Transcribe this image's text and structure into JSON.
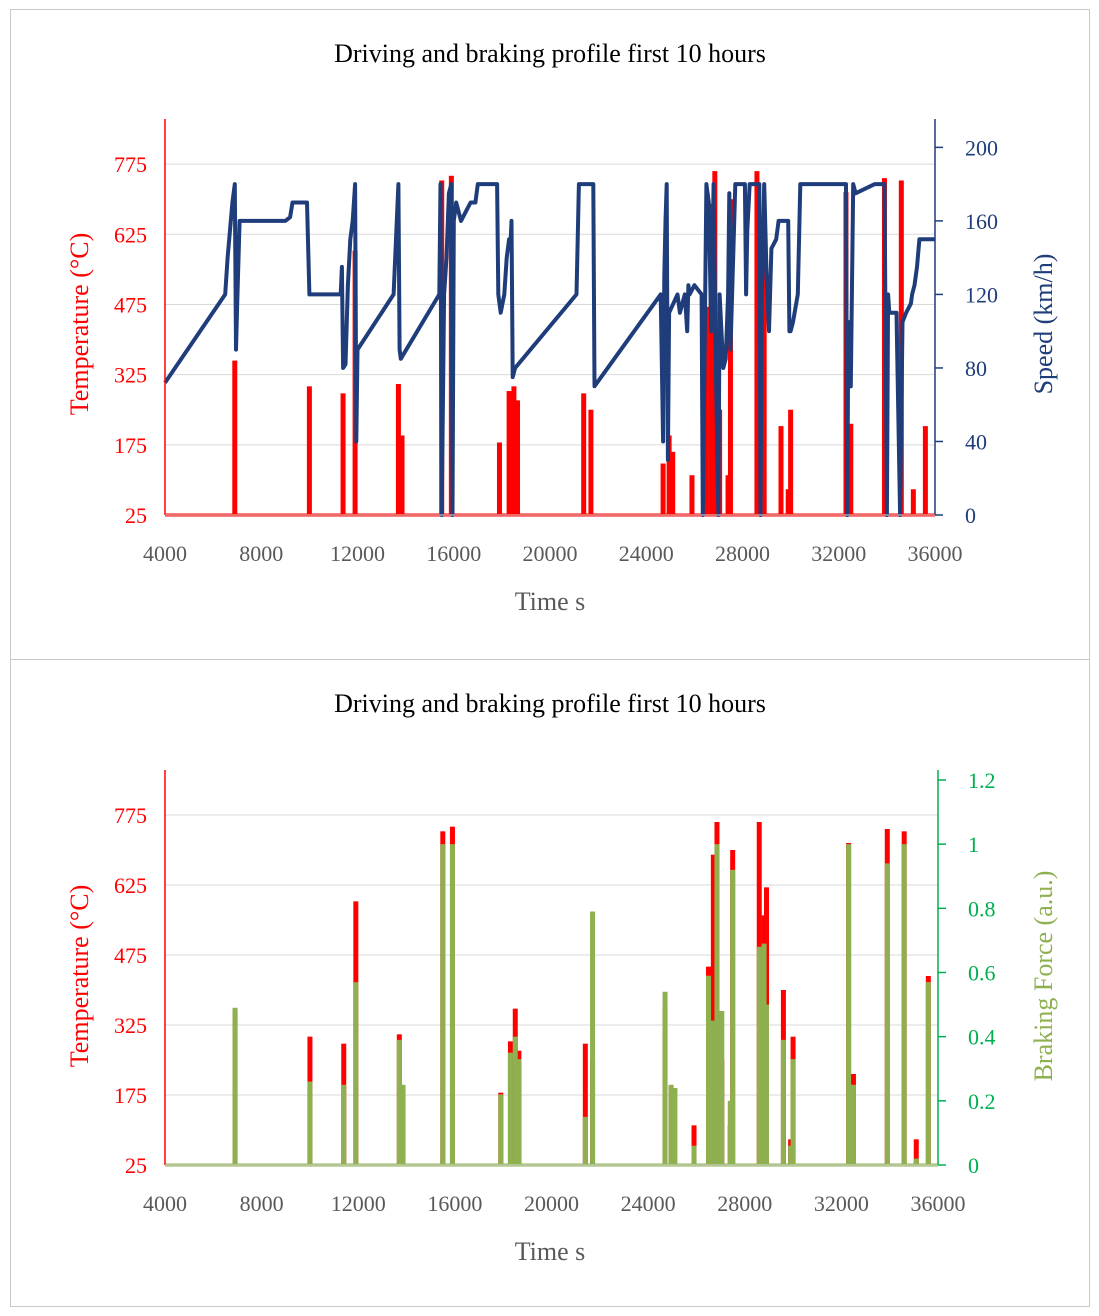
{
  "colors": {
    "temperature": "#ff0000",
    "speed": "#1f3d7a",
    "braking": "#8fb050",
    "braking_axis": "#00b050",
    "grid": "#d9d9d9",
    "axis_text": "#595959"
  },
  "chart_data": [
    {
      "type": "line",
      "title": "Driving and braking profile first 10 hours",
      "xlabel": "Time s",
      "ylabel_left": "Temperature (°C)",
      "ylabel_right": "Speed (km/h)",
      "xlim": [
        4000,
        36000
      ],
      "xticks": [
        "4000",
        "8000",
        "12000",
        "16000",
        "20000",
        "24000",
        "28000",
        "32000",
        "36000"
      ],
      "ylim_left": [
        25,
        850
      ],
      "yticks_left": [
        "25",
        "175",
        "325",
        "475",
        "625",
        "775"
      ],
      "ylim_right": [
        0,
        210
      ],
      "yticks_right": [
        "0",
        "40",
        "80",
        "120",
        "160",
        "200"
      ],
      "series": [
        {
          "name": "Temperature",
          "axis": "left",
          "spikes": [
            [
              6900,
              355
            ],
            [
              10000,
              300
            ],
            [
              11400,
              285
            ],
            [
              11900,
              590
            ],
            [
              13700,
              305
            ],
            [
              13850,
              195
            ],
            [
              15500,
              740
            ],
            [
              15900,
              750
            ],
            [
              17900,
              180
            ],
            [
              18300,
              290
            ],
            [
              18500,
              300
            ],
            [
              18650,
              270
            ],
            [
              21400,
              285
            ],
            [
              21700,
              250
            ],
            [
              24700,
              135
            ],
            [
              24950,
              195
            ],
            [
              25100,
              160
            ],
            [
              25900,
              110
            ],
            [
              26500,
              470
            ],
            [
              26700,
              690
            ],
            [
              26850,
              760
            ],
            [
              27050,
              250
            ],
            [
              27400,
              110
            ],
            [
              27500,
              700
            ],
            [
              28600,
              760
            ],
            [
              28800,
              265
            ],
            [
              28900,
              620
            ],
            [
              29600,
              215
            ],
            [
              29900,
              80
            ],
            [
              30000,
              250
            ],
            [
              32300,
              715
            ],
            [
              32500,
              220
            ],
            [
              33900,
              745
            ],
            [
              34600,
              740
            ],
            [
              35100,
              80
            ],
            [
              35600,
              215
            ]
          ]
        },
        {
          "name": "Speed",
          "axis": "right",
          "points": [
            [
              4000,
              72
            ],
            [
              6500,
              120
            ],
            [
              6600,
              140
            ],
            [
              6700,
              155
            ],
            [
              6800,
              170
            ],
            [
              6900,
              180
            ],
            [
              6950,
              90
            ],
            [
              7000,
              115
            ],
            [
              7100,
              160
            ],
            [
              8500,
              160
            ],
            [
              9000,
              160
            ],
            [
              9200,
              162
            ],
            [
              9300,
              170
            ],
            [
              9900,
              170
            ],
            [
              10000,
              120
            ],
            [
              11300,
              120
            ],
            [
              11350,
              135
            ],
            [
              11400,
              80
            ],
            [
              11500,
              82
            ],
            [
              11600,
              125
            ],
            [
              11700,
              150
            ],
            [
              11800,
              160
            ],
            [
              11900,
              180
            ],
            [
              11950,
              40
            ],
            [
              12000,
              90
            ],
            [
              13500,
              120
            ],
            [
              13600,
              150
            ],
            [
              13700,
              180
            ],
            [
              13750,
              90
            ],
            [
              13800,
              85
            ],
            [
              15400,
              120
            ],
            [
              15450,
              180
            ],
            [
              15500,
              0
            ],
            [
              15600,
              120
            ],
            [
              15700,
              140
            ],
            [
              15800,
              175
            ],
            [
              15900,
              180
            ],
            [
              15950,
              0
            ],
            [
              16000,
              160
            ],
            [
              16100,
              170
            ],
            [
              16200,
              165
            ],
            [
              16300,
              160
            ],
            [
              16500,
              165
            ],
            [
              16700,
              170
            ],
            [
              16900,
              170
            ],
            [
              17000,
              180
            ],
            [
              17800,
              180
            ],
            [
              17850,
              120
            ],
            [
              17950,
              110
            ],
            [
              18100,
              120
            ],
            [
              18200,
              140
            ],
            [
              18300,
              150
            ],
            [
              18350,
              145
            ],
            [
              18400,
              160
            ],
            [
              18450,
              75
            ],
            [
              18550,
              80
            ],
            [
              21100,
              120
            ],
            [
              21200,
              180
            ],
            [
              21800,
              180
            ],
            [
              21850,
              70
            ],
            [
              24600,
              120
            ],
            [
              24700,
              40
            ],
            [
              24750,
              130
            ],
            [
              24800,
              160
            ],
            [
              24850,
              180
            ],
            [
              24900,
              30
            ],
            [
              24950,
              110
            ],
            [
              25300,
              120
            ],
            [
              25400,
              110
            ],
            [
              25600,
              120
            ],
            [
              25700,
              100
            ],
            [
              25750,
              125
            ],
            [
              25800,
              120
            ],
            [
              26000,
              125
            ],
            [
              26300,
              120
            ],
            [
              26350,
              0
            ],
            [
              26500,
              180
            ],
            [
              26600,
              170
            ],
            [
              26700,
              100
            ],
            [
              26800,
              180
            ],
            [
              26900,
              75
            ],
            [
              27000,
              0
            ],
            [
              27050,
              120
            ],
            [
              27200,
              80
            ],
            [
              27300,
              85
            ],
            [
              27400,
              120
            ],
            [
              27450,
              175
            ],
            [
              27500,
              90
            ],
            [
              27700,
              180
            ],
            [
              28100,
              180
            ],
            [
              28150,
              120
            ],
            [
              28200,
              155
            ],
            [
              28300,
              180
            ],
            [
              28700,
              180
            ],
            [
              28750,
              0
            ],
            [
              28800,
              120
            ],
            [
              28900,
              180
            ],
            [
              29000,
              130
            ],
            [
              29100,
              100
            ],
            [
              29200,
              145
            ],
            [
              29400,
              150
            ],
            [
              29500,
              160
            ],
            [
              29900,
              160
            ],
            [
              29950,
              100
            ],
            [
              30000,
              100
            ],
            [
              30100,
              105
            ],
            [
              30300,
              120
            ],
            [
              30400,
              180
            ],
            [
              32300,
              180
            ],
            [
              32350,
              0
            ],
            [
              32400,
              105
            ],
            [
              32500,
              70
            ],
            [
              32600,
              180
            ],
            [
              32700,
              175
            ],
            [
              33500,
              180
            ],
            [
              33700,
              180
            ],
            [
              33900,
              180
            ],
            [
              34000,
              0
            ],
            [
              34050,
              120
            ],
            [
              34100,
              110
            ],
            [
              34400,
              110
            ],
            [
              34550,
              0
            ],
            [
              34650,
              105
            ],
            [
              34800,
              110
            ],
            [
              35000,
              115
            ],
            [
              35050,
              120
            ],
            [
              35150,
              125
            ],
            [
              35250,
              135
            ],
            [
              35350,
              150
            ],
            [
              35600,
              150
            ],
            [
              36000,
              150
            ]
          ]
        }
      ]
    },
    {
      "type": "line",
      "title": "Driving and braking profile first 10 hours",
      "xlabel": "Time s",
      "ylabel_left": "Temperature (°C)",
      "ylabel_right": "Braking Force (a.u.)",
      "xlim": [
        4000,
        36000
      ],
      "xticks": [
        "4000",
        "8000",
        "12000",
        "16000",
        "20000",
        "24000",
        "28000",
        "32000",
        "36000"
      ],
      "ylim_left": [
        25,
        850
      ],
      "yticks_left": [
        "25",
        "175",
        "325",
        "475",
        "625",
        "775"
      ],
      "ylim_right": [
        0,
        1.2
      ],
      "yticks_right": [
        "0",
        "0.2",
        "0.4",
        "0.6",
        "0.8",
        "1",
        "1.2"
      ],
      "series": [
        {
          "name": "Temperature",
          "axis": "left",
          "spikes": [
            [
              6900,
              355
            ],
            [
              10000,
              300
            ],
            [
              11400,
              285
            ],
            [
              11900,
              590
            ],
            [
              13700,
              305
            ],
            [
              13850,
              195
            ],
            [
              15500,
              740
            ],
            [
              15900,
              750
            ],
            [
              17900,
              180
            ],
            [
              18300,
              290
            ],
            [
              18500,
              360
            ],
            [
              18650,
              270
            ],
            [
              21400,
              285
            ],
            [
              21700,
              250
            ],
            [
              24700,
              365
            ],
            [
              24950,
              195
            ],
            [
              25100,
              190
            ],
            [
              25900,
              110
            ],
            [
              26500,
              450
            ],
            [
              26700,
              690
            ],
            [
              26850,
              760
            ],
            [
              27050,
              250
            ],
            [
              27400,
              110
            ],
            [
              27500,
              700
            ],
            [
              28600,
              760
            ],
            [
              28800,
              560
            ],
            [
              28900,
              620
            ],
            [
              29600,
              400
            ],
            [
              29900,
              80
            ],
            [
              30000,
              300
            ],
            [
              32300,
              715
            ],
            [
              32500,
              220
            ],
            [
              33900,
              745
            ],
            [
              34600,
              740
            ],
            [
              35100,
              80
            ],
            [
              35600,
              430
            ]
          ]
        },
        {
          "name": "Braking Force",
          "axis": "right",
          "spikes": [
            [
              6900,
              0.49
            ],
            [
              10000,
              0.26
            ],
            [
              11400,
              0.25
            ],
            [
              11900,
              0.57
            ],
            [
              13700,
              0.39
            ],
            [
              13850,
              0.25
            ],
            [
              15500,
              1.0
            ],
            [
              15900,
              1.0
            ],
            [
              17900,
              0.22
            ],
            [
              18300,
              0.35
            ],
            [
              18500,
              0.4
            ],
            [
              18650,
              0.33
            ],
            [
              21400,
              0.15
            ],
            [
              21700,
              0.79
            ],
            [
              24700,
              0.54
            ],
            [
              24950,
              0.25
            ],
            [
              25100,
              0.24
            ],
            [
              25900,
              0.06
            ],
            [
              26500,
              0.59
            ],
            [
              26700,
              0.45
            ],
            [
              26850,
              1.0
            ],
            [
              27050,
              0.48
            ],
            [
              27400,
              0.2
            ],
            [
              27500,
              0.92
            ],
            [
              28600,
              0.68
            ],
            [
              28800,
              0.69
            ],
            [
              28900,
              0.5
            ],
            [
              29600,
              0.39
            ],
            [
              29900,
              0.06
            ],
            [
              30000,
              0.33
            ],
            [
              32300,
              1.0
            ],
            [
              32500,
              0.25
            ],
            [
              33900,
              0.94
            ],
            [
              34600,
              1.0
            ],
            [
              35100,
              0.02
            ],
            [
              35600,
              0.57
            ]
          ]
        }
      ]
    }
  ]
}
